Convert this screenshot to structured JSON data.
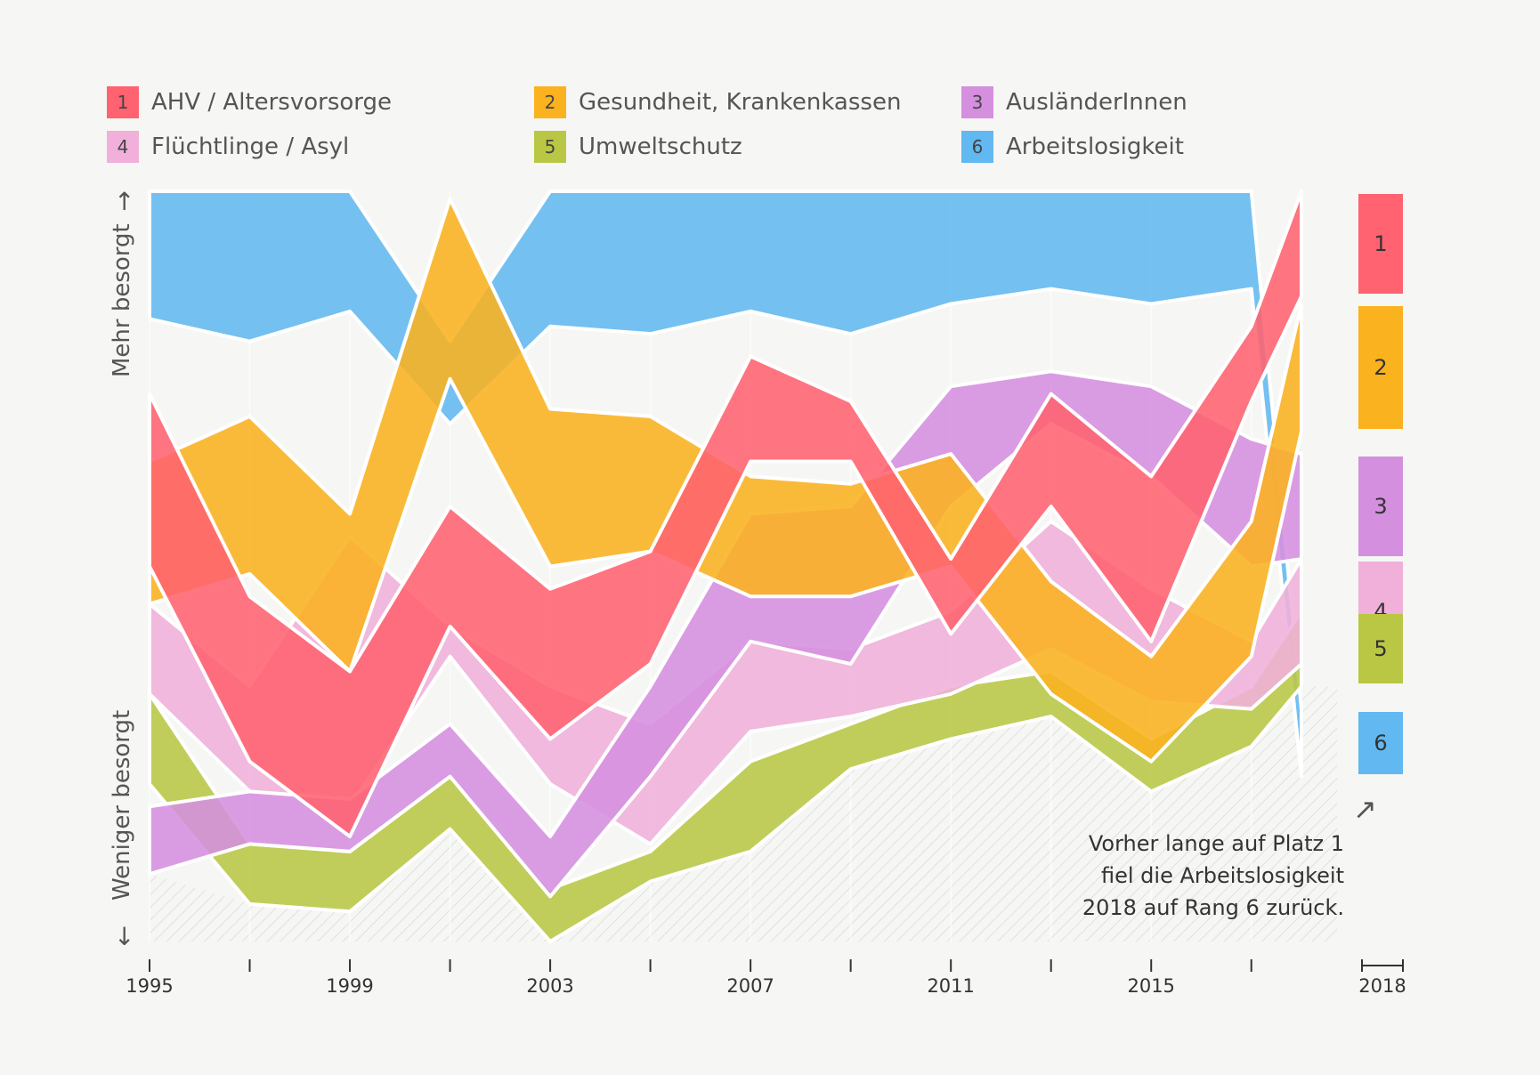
{
  "legend": [
    {
      "num": "1",
      "label": "AHV / Altersvorsorge",
      "color": "#ff6270"
    },
    {
      "num": "2",
      "label": "Gesundheit, Krankenkassen",
      "color": "#fbb21f"
    },
    {
      "num": "3",
      "label": "AusländerInnen",
      "color": "#d58fdf"
    },
    {
      "num": "4",
      "label": "Flüchtlinge / Asyl",
      "color": "#f0b0da"
    },
    {
      "num": "5",
      "label": "Umweltschutz",
      "color": "#b9c744"
    },
    {
      "num": "6",
      "label": "Arbeitslosigkeit",
      "color": "#62b8f0"
    }
  ],
  "axis": {
    "top_label": "Mehr besorgt",
    "bottom_label": "Weniger besorgt",
    "up_arrow": "↑",
    "down_arrow": "↓"
  },
  "annotation": {
    "lines": [
      "Vorher lange auf Platz 1",
      "fiel die Arbeitslosigkeit",
      "2018 auf Rang 6 zurück."
    ],
    "arrow": "↗"
  },
  "chart_data": {
    "type": "area",
    "x": [
      1995,
      1997,
      1999,
      2001,
      2003,
      2005,
      2007,
      2009,
      2011,
      2013,
      2015,
      2017,
      2018
    ],
    "tick_labels": [
      "1995",
      "1999",
      "2003",
      "2007",
      "2011",
      "2015",
      "2018"
    ],
    "final_ranks": [
      "1",
      "2",
      "3",
      "4",
      "5",
      "6"
    ],
    "series": [
      {
        "name": "AHV / Altersvorsorge",
        "bottom": [
          50,
          24,
          14,
          42,
          27,
          37,
          64,
          64,
          41,
          58,
          40,
          72,
          86
        ],
        "top": [
          73,
          46,
          36,
          58,
          47,
          52,
          78,
          72,
          51,
          73,
          62,
          82,
          100
        ]
      },
      {
        "name": "Gesundheit, Krankenkassen",
        "bottom": [
          45,
          49,
          36,
          75,
          50,
          52,
          46,
          46,
          50,
          33,
          24,
          38,
          68
        ],
        "top": [
          64,
          70,
          57,
          99,
          71,
          70,
          62,
          61,
          65,
          48,
          38,
          56,
          85
        ]
      },
      {
        "name": "AusländerInnen",
        "bottom": [
          9,
          13,
          12,
          22,
          6,
          22,
          40,
          37,
          58,
          69,
          62,
          50,
          51
        ],
        "top": [
          18,
          20,
          19,
          29,
          14,
          34,
          57,
          58,
          74,
          76,
          74,
          67,
          65
        ]
      },
      {
        "name": "Flüchtlinge / Asyl",
        "bottom": [
          33,
          20,
          18,
          38,
          21,
          13,
          28,
          30,
          33,
          39,
          32,
          31,
          37
        ],
        "top": [
          45,
          34,
          54,
          42,
          34,
          29,
          40,
          39,
          44,
          56,
          47,
          40,
          51
        ]
      },
      {
        "name": "Umweltschutz",
        "bottom": [
          21,
          5,
          4,
          15,
          0,
          8,
          12,
          23,
          27,
          30,
          20,
          26,
          34
        ],
        "top": [
          33,
          13,
          12,
          22,
          7,
          12,
          24,
          29,
          34,
          36,
          27,
          34,
          44
        ]
      },
      {
        "name": "Arbeitslosigkeit",
        "bottom": [
          83,
          80,
          84,
          69,
          82,
          81,
          84,
          81,
          85,
          87,
          85,
          87,
          22
        ],
        "top": [
          100,
          100,
          100,
          80,
          100,
          100,
          100,
          100,
          100,
          100,
          100,
          100,
          31
        ]
      }
    ],
    "ylim": [
      0,
      100
    ]
  }
}
